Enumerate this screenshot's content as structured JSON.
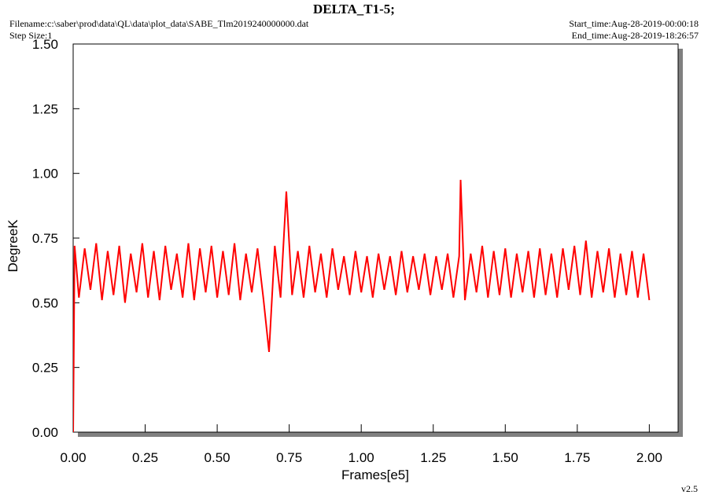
{
  "chart_data": {
    "type": "line",
    "title": "DELTA_T1-5;",
    "filename": "Filename:c:\\saber\\prod\\data\\QL\\data\\plot_data\\SABE_Tlm2019240000000.dat",
    "step_size": "Step Size:1",
    "start_time": "Start_time:Aug-28-2019-00:00:18",
    "end_time": "End_time:Aug-28-2019-18:26:57",
    "version": "v2.5",
    "x_label": "Frames[e5]",
    "y_label": "DegreeK",
    "xlim": [
      0,
      2.1
    ],
    "ylim": [
      0,
      1.5
    ],
    "xticks": [
      {
        "value": 0,
        "label": "0.00"
      },
      {
        "value": 0.25,
        "label": "0.25"
      },
      {
        "value": 0.5,
        "label": "0.50"
      },
      {
        "value": 0.75,
        "label": "0.75"
      },
      {
        "value": 1,
        "label": "1.00"
      },
      {
        "value": 1.25,
        "label": "1.25"
      },
      {
        "value": 1.5,
        "label": "1.50"
      },
      {
        "value": 1.75,
        "label": "1.75"
      },
      {
        "value": 2,
        "label": "2.00"
      }
    ],
    "yticks": [
      {
        "value": 0,
        "label": "0.00"
      },
      {
        "value": 0.25,
        "label": "0.25"
      },
      {
        "value": 0.5,
        "label": "0.50"
      },
      {
        "value": 0.75,
        "label": "0.75"
      },
      {
        "value": 1,
        "label": "1.00"
      },
      {
        "value": 1.25,
        "label": "1.25"
      },
      {
        "value": 1.5,
        "label": "1.50"
      }
    ],
    "x": [
      0,
      0.005,
      0.02,
      0.04,
      0.06,
      0.08,
      0.1,
      0.12,
      0.14,
      0.16,
      0.18,
      0.2,
      0.22,
      0.24,
      0.26,
      0.28,
      0.3,
      0.32,
      0.34,
      0.36,
      0.38,
      0.4,
      0.42,
      0.44,
      0.46,
      0.48,
      0.5,
      0.52,
      0.54,
      0.56,
      0.58,
      0.6,
      0.62,
      0.64,
      0.66,
      0.68,
      0.7,
      0.72,
      0.74,
      0.76,
      0.78,
      0.8,
      0.82,
      0.84,
      0.86,
      0.88,
      0.9,
      0.92,
      0.94,
      0.96,
      0.98,
      1.0,
      1.02,
      1.04,
      1.06,
      1.08,
      1.1,
      1.12,
      1.14,
      1.16,
      1.18,
      1.2,
      1.22,
      1.24,
      1.26,
      1.28,
      1.3,
      1.32,
      1.34,
      1.345,
      1.36,
      1.38,
      1.4,
      1.42,
      1.44,
      1.46,
      1.48,
      1.5,
      1.52,
      1.54,
      1.56,
      1.58,
      1.6,
      1.62,
      1.64,
      1.66,
      1.68,
      1.7,
      1.72,
      1.74,
      1.76,
      1.78,
      1.8,
      1.82,
      1.84,
      1.86,
      1.88,
      1.9,
      1.92,
      1.94,
      1.96,
      1.98,
      2.0
    ],
    "series": [
      {
        "color": "#ff0000",
        "values": [
          0.0,
          0.72,
          0.52,
          0.71,
          0.55,
          0.73,
          0.51,
          0.7,
          0.53,
          0.72,
          0.5,
          0.69,
          0.54,
          0.73,
          0.52,
          0.7,
          0.51,
          0.72,
          0.55,
          0.69,
          0.52,
          0.73,
          0.51,
          0.71,
          0.54,
          0.72,
          0.52,
          0.7,
          0.53,
          0.73,
          0.51,
          0.69,
          0.54,
          0.71,
          0.52,
          0.31,
          0.72,
          0.52,
          0.93,
          0.53,
          0.7,
          0.52,
          0.72,
          0.54,
          0.69,
          0.52,
          0.71,
          0.55,
          0.68,
          0.53,
          0.7,
          0.54,
          0.68,
          0.52,
          0.69,
          0.55,
          0.68,
          0.53,
          0.7,
          0.54,
          0.68,
          0.55,
          0.69,
          0.53,
          0.68,
          0.55,
          0.69,
          0.52,
          0.68,
          0.975,
          0.51,
          0.69,
          0.54,
          0.72,
          0.52,
          0.7,
          0.53,
          0.71,
          0.52,
          0.69,
          0.54,
          0.7,
          0.52,
          0.71,
          0.53,
          0.69,
          0.52,
          0.71,
          0.55,
          0.72,
          0.53,
          0.74,
          0.52,
          0.7,
          0.54,
          0.71,
          0.52,
          0.69,
          0.53,
          0.7,
          0.52,
          0.69,
          0.51
        ]
      }
    ]
  }
}
